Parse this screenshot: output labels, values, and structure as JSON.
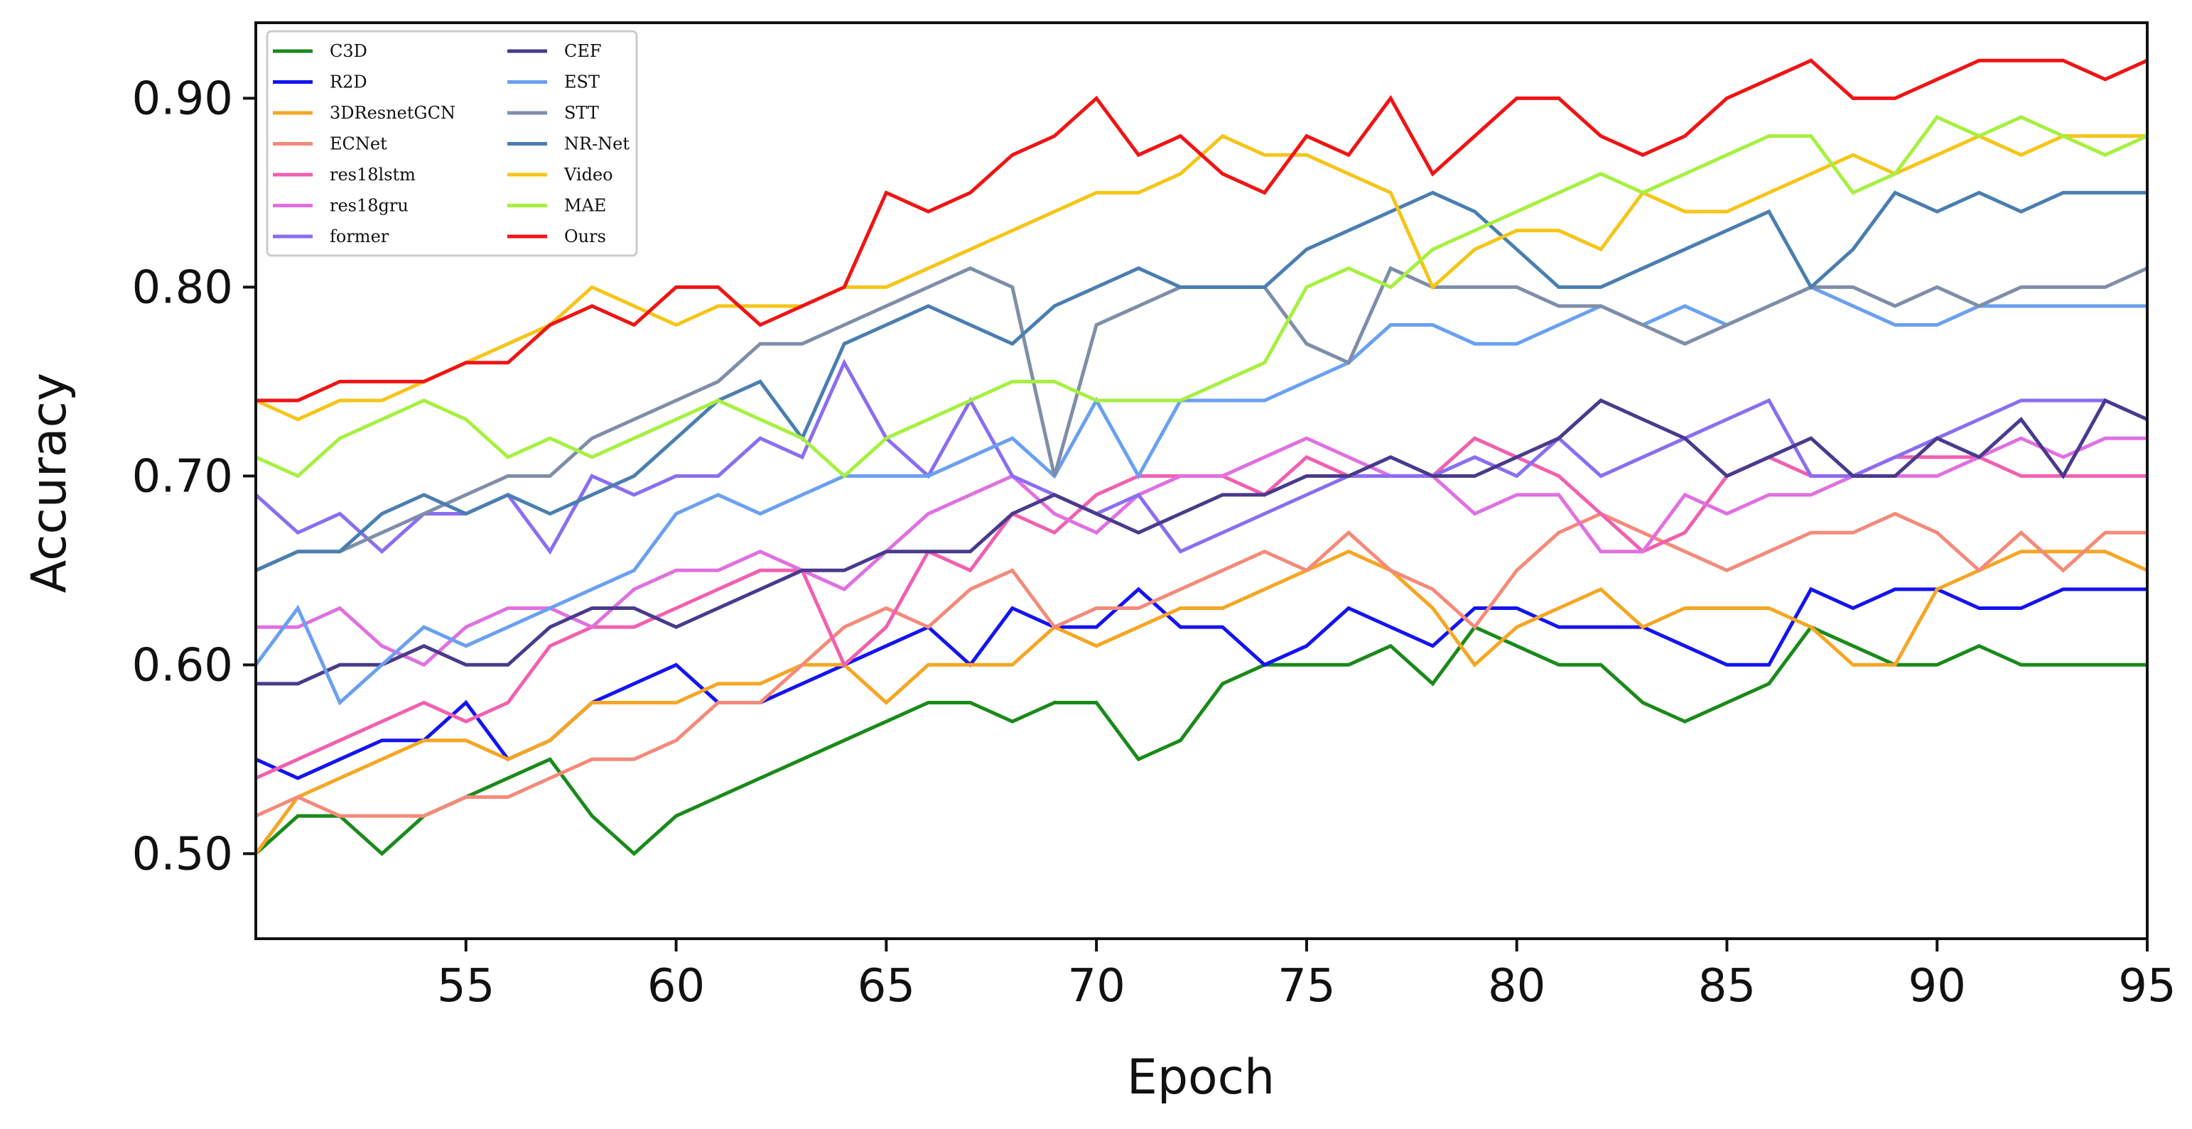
{
  "chart_data": {
    "type": "line",
    "title": "",
    "xlabel": "Epoch",
    "ylabel": "Accuracy",
    "xlim": [
      50,
      95
    ],
    "ylim": [
      0.455,
      0.94
    ],
    "xticks": [
      55,
      60,
      65,
      70,
      75,
      80,
      85,
      90,
      95
    ],
    "yticks": [
      0.5,
      0.6,
      0.7,
      0.8,
      0.9
    ],
    "ytick_labels": [
      "0.50",
      "0.60",
      "0.70",
      "0.80",
      "0.90"
    ],
    "legend_position": "top-left",
    "grid": false,
    "x": [
      50,
      51,
      52,
      53,
      54,
      55,
      56,
      57,
      58,
      59,
      60,
      61,
      62,
      63,
      64,
      65,
      66,
      67,
      68,
      69,
      70,
      71,
      72,
      73,
      74,
      75,
      76,
      77,
      78,
      79,
      80,
      81,
      82,
      83,
      84,
      85,
      86,
      87,
      88,
      89,
      90,
      91,
      92,
      93,
      94,
      95
    ],
    "series": [
      {
        "name": "C3D",
        "color": "#1a8a1a",
        "values": [
          0.5,
          0.52,
          0.52,
          0.5,
          0.52,
          0.53,
          0.54,
          0.55,
          0.52,
          0.5,
          0.52,
          0.53,
          0.54,
          0.55,
          0.56,
          0.57,
          0.58,
          0.58,
          0.57,
          0.58,
          0.58,
          0.55,
          0.56,
          0.59,
          0.6,
          0.6,
          0.6,
          0.61,
          0.59,
          0.62,
          0.61,
          0.6,
          0.6,
          0.58,
          0.57,
          0.58,
          0.59,
          0.62,
          0.61,
          0.6,
          0.6,
          0.61,
          0.6,
          0.6,
          0.6,
          0.6
        ]
      },
      {
        "name": "R2D",
        "color": "#1414f0",
        "values": [
          0.55,
          0.54,
          0.55,
          0.56,
          0.56,
          0.58,
          0.55,
          0.56,
          0.58,
          0.59,
          0.6,
          0.58,
          0.58,
          0.59,
          0.6,
          0.61,
          0.62,
          0.6,
          0.63,
          0.62,
          0.62,
          0.64,
          0.62,
          0.62,
          0.6,
          0.61,
          0.63,
          0.62,
          0.61,
          0.63,
          0.63,
          0.62,
          0.62,
          0.62,
          0.61,
          0.6,
          0.6,
          0.64,
          0.63,
          0.64,
          0.64,
          0.63,
          0.63,
          0.64,
          0.64,
          0.64
        ]
      },
      {
        "name": "3DResnetGCN",
        "color": "#f5a623",
        "values": [
          0.5,
          0.53,
          0.54,
          0.55,
          0.56,
          0.56,
          0.55,
          0.56,
          0.58,
          0.58,
          0.58,
          0.59,
          0.59,
          0.6,
          0.6,
          0.58,
          0.6,
          0.6,
          0.6,
          0.62,
          0.61,
          0.62,
          0.63,
          0.63,
          0.64,
          0.65,
          0.66,
          0.65,
          0.63,
          0.6,
          0.62,
          0.63,
          0.64,
          0.62,
          0.63,
          0.63,
          0.63,
          0.62,
          0.6,
          0.6,
          0.64,
          0.65,
          0.66,
          0.66,
          0.66,
          0.65
        ]
      },
      {
        "name": "ECNet",
        "color": "#f48a7a",
        "values": [
          0.52,
          0.53,
          0.52,
          0.52,
          0.52,
          0.53,
          0.53,
          0.54,
          0.55,
          0.55,
          0.56,
          0.58,
          0.58,
          0.6,
          0.62,
          0.63,
          0.62,
          0.64,
          0.65,
          0.62,
          0.63,
          0.63,
          0.64,
          0.65,
          0.66,
          0.65,
          0.67,
          0.65,
          0.64,
          0.62,
          0.65,
          0.67,
          0.68,
          0.67,
          0.66,
          0.65,
          0.66,
          0.67,
          0.67,
          0.68,
          0.67,
          0.65,
          0.67,
          0.65,
          0.67,
          0.67
        ]
      },
      {
        "name": "res18lstm",
        "color": "#f060b0",
        "values": [
          0.54,
          0.55,
          0.56,
          0.57,
          0.58,
          0.57,
          0.58,
          0.61,
          0.62,
          0.62,
          0.63,
          0.64,
          0.65,
          0.65,
          0.6,
          0.62,
          0.66,
          0.65,
          0.68,
          0.67,
          0.69,
          0.7,
          0.7,
          0.7,
          0.69,
          0.71,
          0.7,
          0.7,
          0.7,
          0.72,
          0.71,
          0.7,
          0.68,
          0.66,
          0.67,
          0.7,
          0.71,
          0.7,
          0.7,
          0.71,
          0.71,
          0.71,
          0.7,
          0.7,
          0.7,
          0.7
        ]
      },
      {
        "name": "res18gru",
        "color": "#e070e0",
        "values": [
          0.62,
          0.62,
          0.63,
          0.61,
          0.6,
          0.62,
          0.63,
          0.63,
          0.62,
          0.64,
          0.65,
          0.65,
          0.66,
          0.65,
          0.64,
          0.66,
          0.68,
          0.69,
          0.7,
          0.68,
          0.67,
          0.69,
          0.7,
          0.7,
          0.71,
          0.72,
          0.71,
          0.7,
          0.7,
          0.68,
          0.69,
          0.69,
          0.66,
          0.66,
          0.69,
          0.68,
          0.69,
          0.69,
          0.7,
          0.7,
          0.7,
          0.71,
          0.72,
          0.71,
          0.72,
          0.72
        ]
      },
      {
        "name": "former",
        "color": "#8a6ef0",
        "values": [
          0.69,
          0.67,
          0.68,
          0.66,
          0.68,
          0.68,
          0.69,
          0.66,
          0.7,
          0.69,
          0.7,
          0.7,
          0.72,
          0.71,
          0.76,
          0.72,
          0.7,
          0.74,
          0.7,
          0.69,
          0.68,
          0.69,
          0.66,
          0.67,
          0.68,
          0.69,
          0.7,
          0.7,
          0.7,
          0.71,
          0.7,
          0.72,
          0.7,
          0.71,
          0.72,
          0.73,
          0.74,
          0.7,
          0.7,
          0.71,
          0.72,
          0.73,
          0.74,
          0.74,
          0.74,
          0.73
        ]
      },
      {
        "name": "CEF",
        "color": "#4a3a8c",
        "values": [
          0.59,
          0.59,
          0.6,
          0.6,
          0.61,
          0.6,
          0.6,
          0.62,
          0.63,
          0.63,
          0.62,
          0.63,
          0.64,
          0.65,
          0.65,
          0.66,
          0.66,
          0.66,
          0.68,
          0.69,
          0.68,
          0.67,
          0.68,
          0.69,
          0.69,
          0.7,
          0.7,
          0.71,
          0.7,
          0.7,
          0.71,
          0.72,
          0.74,
          0.73,
          0.72,
          0.7,
          0.71,
          0.72,
          0.7,
          0.7,
          0.72,
          0.71,
          0.73,
          0.7,
          0.74,
          0.73
        ]
      },
      {
        "name": "EST",
        "color": "#6aa0f0",
        "values": [
          0.6,
          0.63,
          0.58,
          0.6,
          0.62,
          0.61,
          0.62,
          0.63,
          0.64,
          0.65,
          0.68,
          0.69,
          0.68,
          0.69,
          0.7,
          0.7,
          0.7,
          0.71,
          0.72,
          0.7,
          0.74,
          0.7,
          0.74,
          0.74,
          0.74,
          0.75,
          0.76,
          0.78,
          0.78,
          0.77,
          0.77,
          0.78,
          0.79,
          0.78,
          0.79,
          0.78,
          0.79,
          0.8,
          0.79,
          0.78,
          0.78,
          0.79,
          0.79,
          0.79,
          0.79,
          0.79
        ]
      },
      {
        "name": "STT",
        "color": "#7f8ea8",
        "values": [
          0.65,
          0.66,
          0.66,
          0.67,
          0.68,
          0.69,
          0.7,
          0.7,
          0.72,
          0.73,
          0.74,
          0.75,
          0.77,
          0.77,
          0.78,
          0.79,
          0.8,
          0.81,
          0.8,
          0.7,
          0.78,
          0.79,
          0.8,
          0.8,
          0.8,
          0.77,
          0.76,
          0.81,
          0.8,
          0.8,
          0.8,
          0.79,
          0.79,
          0.78,
          0.77,
          0.78,
          0.79,
          0.8,
          0.8,
          0.79,
          0.8,
          0.79,
          0.8,
          0.8,
          0.8,
          0.81
        ]
      },
      {
        "name": "NR-Net",
        "color": "#4a7eb0",
        "values": [
          0.65,
          0.66,
          0.66,
          0.68,
          0.69,
          0.68,
          0.69,
          0.68,
          0.69,
          0.7,
          0.72,
          0.74,
          0.75,
          0.72,
          0.77,
          0.78,
          0.79,
          0.78,
          0.77,
          0.79,
          0.8,
          0.81,
          0.8,
          0.8,
          0.8,
          0.82,
          0.83,
          0.84,
          0.85,
          0.84,
          0.82,
          0.8,
          0.8,
          0.81,
          0.82,
          0.83,
          0.84,
          0.8,
          0.82,
          0.85,
          0.84,
          0.85,
          0.84,
          0.85,
          0.85,
          0.85
        ]
      },
      {
        "name": "Video",
        "color": "#f5c518",
        "values": [
          0.74,
          0.73,
          0.74,
          0.74,
          0.75,
          0.76,
          0.77,
          0.78,
          0.8,
          0.79,
          0.78,
          0.79,
          0.79,
          0.79,
          0.8,
          0.8,
          0.81,
          0.82,
          0.83,
          0.84,
          0.85,
          0.85,
          0.86,
          0.88,
          0.87,
          0.87,
          0.86,
          0.85,
          0.8,
          0.82,
          0.83,
          0.83,
          0.82,
          0.85,
          0.84,
          0.84,
          0.85,
          0.86,
          0.87,
          0.86,
          0.87,
          0.88,
          0.87,
          0.88,
          0.88,
          0.88
        ]
      },
      {
        "name": "MAE",
        "color": "#a6f040",
        "values": [
          0.71,
          0.7,
          0.72,
          0.73,
          0.74,
          0.73,
          0.71,
          0.72,
          0.71,
          0.72,
          0.73,
          0.74,
          0.73,
          0.72,
          0.7,
          0.72,
          0.73,
          0.74,
          0.75,
          0.75,
          0.74,
          0.74,
          0.74,
          0.75,
          0.76,
          0.8,
          0.81,
          0.8,
          0.82,
          0.83,
          0.84,
          0.85,
          0.86,
          0.85,
          0.86,
          0.87,
          0.88,
          0.88,
          0.85,
          0.86,
          0.89,
          0.88,
          0.89,
          0.88,
          0.87,
          0.88
        ]
      },
      {
        "name": "Ours",
        "color": "#f01414",
        "values": [
          0.74,
          0.74,
          0.75,
          0.75,
          0.75,
          0.76,
          0.76,
          0.78,
          0.79,
          0.78,
          0.8,
          0.8,
          0.78,
          0.79,
          0.8,
          0.85,
          0.84,
          0.85,
          0.87,
          0.88,
          0.9,
          0.87,
          0.88,
          0.86,
          0.85,
          0.88,
          0.87,
          0.9,
          0.86,
          0.88,
          0.9,
          0.9,
          0.88,
          0.87,
          0.88,
          0.9,
          0.91,
          0.92,
          0.9,
          0.9,
          0.91,
          0.92,
          0.92,
          0.92,
          0.91,
          0.92
        ]
      }
    ]
  }
}
